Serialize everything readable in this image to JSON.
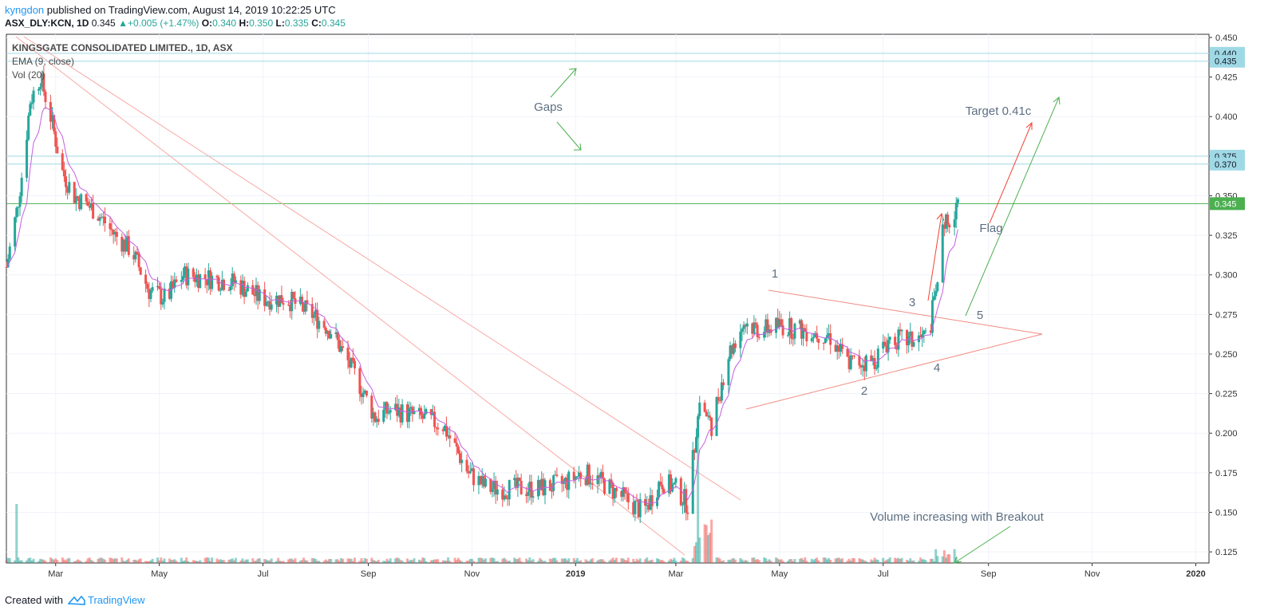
{
  "header": {
    "author": "kyngdon",
    "published_text": "published on TradingView.com, August 14, 2019 10:22:25 UTC",
    "symbol": "ASX_DLY:KCN, 1D",
    "last": "0.345",
    "change_arrow": "▲",
    "change": "+0.005 (+1.47%)",
    "o_label": "O:",
    "o_value": "0.340",
    "h_label": "H:",
    "h_value": "0.350",
    "l_label": "L:",
    "l_value": "0.335",
    "c_label": "C:",
    "c_value": "0.345"
  },
  "legend": {
    "title": "KINGSGATE CONSOLIDATED LIMITED., 1D, ASX",
    "ema": "EMA (9, close)",
    "vol": "Vol (20)"
  },
  "footer": {
    "created_with": "Created with",
    "brand": "TradingView"
  },
  "colors": {
    "up": "#26a69a",
    "down": "#ef5350",
    "ema": "#c45ee0",
    "hline": "#9fd9e5",
    "trend": "#f7a9a4",
    "green_arrow": "#4caf50",
    "red_arrow": "#f44336",
    "last_price": "#4caf50",
    "axis_label_bg": "#9fd9e5"
  },
  "chart_data": {
    "type": "candlestick",
    "x_ticks": [
      "Mar",
      "May",
      "Jul",
      "Sep",
      "Nov",
      "2019",
      "Mar",
      "May",
      "Jul",
      "Sep",
      "Nov",
      "2020"
    ],
    "y_ticks": [
      "0.450",
      "0.425",
      "0.400",
      "0.375",
      "0.350",
      "0.325",
      "0.300",
      "0.275",
      "0.250",
      "0.225",
      "0.200",
      "0.175",
      "0.150",
      "0.125"
    ],
    "ylim": [
      0.118,
      0.452
    ],
    "price_labels": [
      {
        "value": 0.44,
        "text": "0.440"
      },
      {
        "value": 0.435,
        "text": "0.435"
      },
      {
        "value": 0.375,
        "text": "0.375"
      },
      {
        "value": 0.37,
        "text": "0.370"
      }
    ],
    "last_price": {
      "value": 0.345,
      "text": "0.345"
    },
    "close_path": [
      [
        "2018-01-31",
        0.305
      ],
      [
        "2018-02-06",
        0.34
      ],
      [
        "2018-02-10",
        0.37
      ],
      [
        "2018-02-14",
        0.41
      ],
      [
        "2018-02-20",
        0.425
      ],
      [
        "2018-02-26",
        0.4
      ],
      [
        "2018-03-05",
        0.365
      ],
      [
        "2018-03-12",
        0.35
      ],
      [
        "2018-03-25",
        0.34
      ],
      [
        "2018-04-05",
        0.325
      ],
      [
        "2018-04-15",
        0.315
      ],
      [
        "2018-04-25",
        0.29
      ],
      [
        "2018-05-05",
        0.285
      ],
      [
        "2018-05-15",
        0.3
      ],
      [
        "2018-05-30",
        0.298
      ],
      [
        "2018-06-15",
        0.295
      ],
      [
        "2018-06-30",
        0.285
      ],
      [
        "2018-07-15",
        0.285
      ],
      [
        "2018-07-30",
        0.275
      ],
      [
        "2018-08-10",
        0.265
      ],
      [
        "2018-08-25",
        0.235
      ],
      [
        "2018-09-05",
        0.21
      ],
      [
        "2018-09-15",
        0.215
      ],
      [
        "2018-10-01",
        0.21
      ],
      [
        "2018-10-15",
        0.205
      ],
      [
        "2018-10-30",
        0.175
      ],
      [
        "2018-11-10",
        0.165
      ],
      [
        "2018-11-25",
        0.165
      ],
      [
        "2018-12-10",
        0.165
      ],
      [
        "2018-12-25",
        0.168
      ],
      [
        "2019-01-05",
        0.175
      ],
      [
        "2019-01-15",
        0.17
      ],
      [
        "2019-01-28",
        0.16
      ],
      [
        "2019-02-10",
        0.15
      ],
      [
        "2019-02-20",
        0.17
      ],
      [
        "2019-03-01",
        0.165
      ],
      [
        "2019-03-08",
        0.155
      ],
      [
        "2019-03-15",
        0.22
      ],
      [
        "2019-03-22",
        0.205
      ],
      [
        "2019-04-01",
        0.25
      ],
      [
        "2019-04-10",
        0.27
      ],
      [
        "2019-04-20",
        0.265
      ],
      [
        "2019-05-01",
        0.268
      ],
      [
        "2019-05-15",
        0.265
      ],
      [
        "2019-05-30",
        0.262
      ],
      [
        "2019-06-10",
        0.245
      ],
      [
        "2019-06-25",
        0.245
      ],
      [
        "2019-07-05",
        0.26
      ],
      [
        "2019-07-18",
        0.258
      ],
      [
        "2019-07-28",
        0.262
      ],
      [
        "2019-08-02",
        0.3
      ],
      [
        "2019-08-06",
        0.335
      ],
      [
        "2019-08-10",
        0.325
      ],
      [
        "2019-08-14",
        0.345
      ]
    ],
    "annotations": [
      "Gaps",
      "Target 0.41c",
      "Flag",
      "1",
      "2",
      "3",
      "4",
      "5",
      "Volume increasing with Breakout"
    ]
  }
}
